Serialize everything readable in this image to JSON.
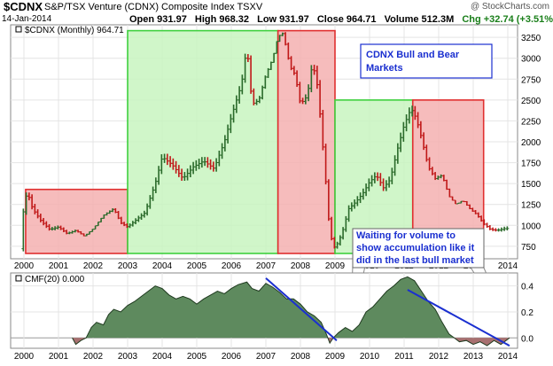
{
  "header": {
    "symbol": "$CDNX",
    "index_name": "S&P/TSX Venture (CDNX) Composite Index  TSXV",
    "date": "14-Jan-2014",
    "open": "Open 931.97",
    "high": "High 968.32",
    "low": "Low 931.97",
    "close": "Close 964.71",
    "volume": "Volume 512.3M",
    "change": "Chg +32.74 (+3.51%) ▲",
    "brand": "@ StockCharts.com"
  },
  "colors": {
    "bull": "#c8f5c0",
    "bull_edge": "#3fd03f",
    "bear": "#f5b0b0",
    "bear_edge": "#e03030",
    "cmf_pos": "#5e8a5e",
    "cmf_neg": "#a87070",
    "trend": "#1a2fd0",
    "up_bar": "#2a6a2a",
    "down_bar": "#c01818"
  },
  "chart_data": [
    {
      "type": "line",
      "title": "$CDNX (Monthly) 964.71",
      "legend_label": "$CDNX (Monthly) 964.71",
      "ylabel": "",
      "ylim": [
        600,
        3400
      ],
      "y_ticks": [
        750,
        1000,
        1250,
        1500,
        1750,
        2000,
        2250,
        2500,
        2750,
        3000,
        3250
      ],
      "x_ticks": [
        "2000",
        "2001",
        "2002",
        "2003",
        "2004",
        "2005",
        "2006",
        "2007",
        "2008",
        "2009",
        "2010",
        "2011",
        "2012",
        "2013",
        "2014"
      ],
      "series": [
        {
          "name": "$CDNX Monthly",
          "points": [
            [
              1999.9,
              720
            ],
            [
              2000.0,
              1250
            ],
            [
              2000.1,
              1400
            ],
            [
              2000.25,
              1200
            ],
            [
              2000.5,
              1050
            ],
            [
              2000.75,
              950
            ],
            [
              2001.0,
              980
            ],
            [
              2001.25,
              900
            ],
            [
              2001.5,
              940
            ],
            [
              2001.75,
              870
            ],
            [
              2002.0,
              960
            ],
            [
              2002.3,
              1120
            ],
            [
              2002.6,
              1200
            ],
            [
              2002.8,
              1030
            ],
            [
              2003.0,
              980
            ],
            [
              2003.2,
              1050
            ],
            [
              2003.5,
              1150
            ],
            [
              2003.8,
              1500
            ],
            [
              2004.0,
              1820
            ],
            [
              2004.3,
              1720
            ],
            [
              2004.6,
              1560
            ],
            [
              2004.9,
              1700
            ],
            [
              2005.2,
              1770
            ],
            [
              2005.5,
              1680
            ],
            [
              2005.8,
              2000
            ],
            [
              2006.0,
              2300
            ],
            [
              2006.3,
              2700
            ],
            [
              2006.45,
              3150
            ],
            [
              2006.6,
              2450
            ],
            [
              2006.8,
              2500
            ],
            [
              2007.0,
              2800
            ],
            [
              2007.2,
              3000
            ],
            [
              2007.35,
              3260
            ],
            [
              2007.5,
              3300
            ],
            [
              2007.7,
              2900
            ],
            [
              2007.85,
              2800
            ],
            [
              2008.0,
              2450
            ],
            [
              2008.2,
              2550
            ],
            [
              2008.35,
              2950
            ],
            [
              2008.5,
              2650
            ],
            [
              2008.7,
              1700
            ],
            [
              2008.85,
              900
            ],
            [
              2009.0,
              720
            ],
            [
              2009.2,
              900
            ],
            [
              2009.4,
              1200
            ],
            [
              2009.6,
              1280
            ],
            [
              2009.8,
              1380
            ],
            [
              2010.0,
              1520
            ],
            [
              2010.2,
              1600
            ],
            [
              2010.4,
              1450
            ],
            [
              2010.6,
              1550
            ],
            [
              2010.8,
              1900
            ],
            [
              2011.0,
              2200
            ],
            [
              2011.2,
              2400
            ],
            [
              2011.35,
              2280
            ],
            [
              2011.5,
              2050
            ],
            [
              2011.7,
              1700
            ],
            [
              2011.9,
              1560
            ],
            [
              2012.1,
              1600
            ],
            [
              2012.3,
              1350
            ],
            [
              2012.5,
              1250
            ],
            [
              2012.7,
              1300
            ],
            [
              2012.9,
              1200
            ],
            [
              2013.1,
              1130
            ],
            [
              2013.3,
              1020
            ],
            [
              2013.5,
              950
            ],
            [
              2013.7,
              940
            ],
            [
              2013.9,
              960
            ],
            [
              2014.05,
              964.71
            ]
          ]
        }
      ],
      "zones": [
        {
          "label": "bear",
          "x0": 2000.05,
          "x1": 2003.0,
          "y_top": 1430
        },
        {
          "label": "bull",
          "x0": 2003.0,
          "x1": 2007.35,
          "y_top": 3330
        },
        {
          "label": "bear",
          "x0": 2007.35,
          "x1": 2009.0,
          "y_top": 3330
        },
        {
          "label": "bull",
          "x0": 2009.0,
          "x1": 2011.25,
          "y_top": 2500
        },
        {
          "label": "bear",
          "x0": 2011.25,
          "x1": 2013.3,
          "y_top": 2500
        }
      ]
    },
    {
      "type": "area",
      "title": "CMF(20) 0.000",
      "legend_label": "CMF(20) 0.000",
      "ylim": [
        -0.08,
        0.5
      ],
      "y_ticks": [
        0.0,
        0.2,
        0.4
      ],
      "x_ticks": [
        "2000",
        "2001",
        "2002",
        "2003",
        "2004",
        "2005",
        "2006",
        "2007",
        "2008",
        "2009",
        "2010",
        "2011",
        "2012",
        "2013",
        "2014"
      ],
      "series": [
        {
          "name": "CMF(20)",
          "points": [
            [
              2001.4,
              0.0
            ],
            [
              2001.5,
              -0.05
            ],
            [
              2001.65,
              -0.02
            ],
            [
              2001.8,
              0.0
            ],
            [
              2001.95,
              0.08
            ],
            [
              2002.1,
              0.12
            ],
            [
              2002.3,
              0.1
            ],
            [
              2002.45,
              0.18
            ],
            [
              2002.6,
              0.22
            ],
            [
              2002.8,
              0.2
            ],
            [
              2003.0,
              0.25
            ],
            [
              2003.2,
              0.28
            ],
            [
              2003.4,
              0.32
            ],
            [
              2003.6,
              0.36
            ],
            [
              2003.8,
              0.4
            ],
            [
              2004.0,
              0.38
            ],
            [
              2004.2,
              0.33
            ],
            [
              2004.4,
              0.3
            ],
            [
              2004.6,
              0.32
            ],
            [
              2004.8,
              0.3
            ],
            [
              2005.0,
              0.26
            ],
            [
              2005.2,
              0.3
            ],
            [
              2005.4,
              0.33
            ],
            [
              2005.6,
              0.36
            ],
            [
              2005.8,
              0.34
            ],
            [
              2006.0,
              0.38
            ],
            [
              2006.2,
              0.41
            ],
            [
              2006.45,
              0.43
            ],
            [
              2006.6,
              0.38
            ],
            [
              2006.8,
              0.36
            ],
            [
              2007.0,
              0.42
            ],
            [
              2007.2,
              0.39
            ],
            [
              2007.4,
              0.35
            ],
            [
              2007.6,
              0.3
            ],
            [
              2007.8,
              0.3
            ],
            [
              2008.0,
              0.26
            ],
            [
              2008.2,
              0.2
            ],
            [
              2008.4,
              0.17
            ],
            [
              2008.6,
              0.12
            ],
            [
              2008.75,
              0.03
            ],
            [
              2008.85,
              -0.04
            ],
            [
              2008.95,
              0.0
            ],
            [
              2009.1,
              0.04
            ],
            [
              2009.3,
              0.08
            ],
            [
              2009.5,
              0.05
            ],
            [
              2009.7,
              0.1
            ],
            [
              2009.9,
              0.2
            ],
            [
              2010.1,
              0.24
            ],
            [
              2010.3,
              0.3
            ],
            [
              2010.5,
              0.36
            ],
            [
              2010.7,
              0.4
            ],
            [
              2010.9,
              0.45
            ],
            [
              2011.1,
              0.47
            ],
            [
              2011.3,
              0.44
            ],
            [
              2011.5,
              0.36
            ],
            [
              2011.7,
              0.28
            ],
            [
              2011.9,
              0.22
            ],
            [
              2012.1,
              0.12
            ],
            [
              2012.3,
              0.03
            ],
            [
              2012.45,
              0.0
            ],
            [
              2012.6,
              -0.03
            ],
            [
              2012.8,
              -0.02
            ],
            [
              2013.0,
              -0.05
            ],
            [
              2013.2,
              -0.03
            ],
            [
              2013.4,
              -0.06
            ],
            [
              2013.6,
              -0.02
            ],
            [
              2013.8,
              -0.05
            ],
            [
              2013.95,
              -0.02
            ],
            [
              2014.05,
              0.0
            ]
          ]
        }
      ]
    }
  ],
  "annotations": {
    "box_title_line1": "CDNX Bull and Bear",
    "box_title_line2": "Markets",
    "note_line1": "Waiting for volume to",
    "note_line2": "show accumulation like it",
    "note_line3": "did in the last bull market"
  },
  "trend_lines": [
    {
      "x0": 2007.0,
      "y0": 0.46,
      "x1": 2009.05,
      "y1": -0.02
    },
    {
      "x0": 2011.1,
      "y0": 0.37,
      "x1": 2014.05,
      "y1": -0.06
    }
  ]
}
